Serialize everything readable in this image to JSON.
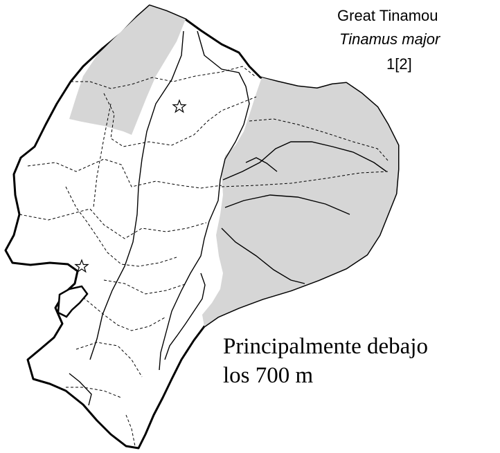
{
  "species": {
    "common_name": "Great Tinamou",
    "scientific_name": "Tinamus major",
    "reference": "1[2]"
  },
  "note": {
    "line1": "Principalmente debajo",
    "line2": "los 700 m"
  },
  "legend_colors": {
    "distribution_fill": "#d6d6d6",
    "outline": "#000000"
  }
}
